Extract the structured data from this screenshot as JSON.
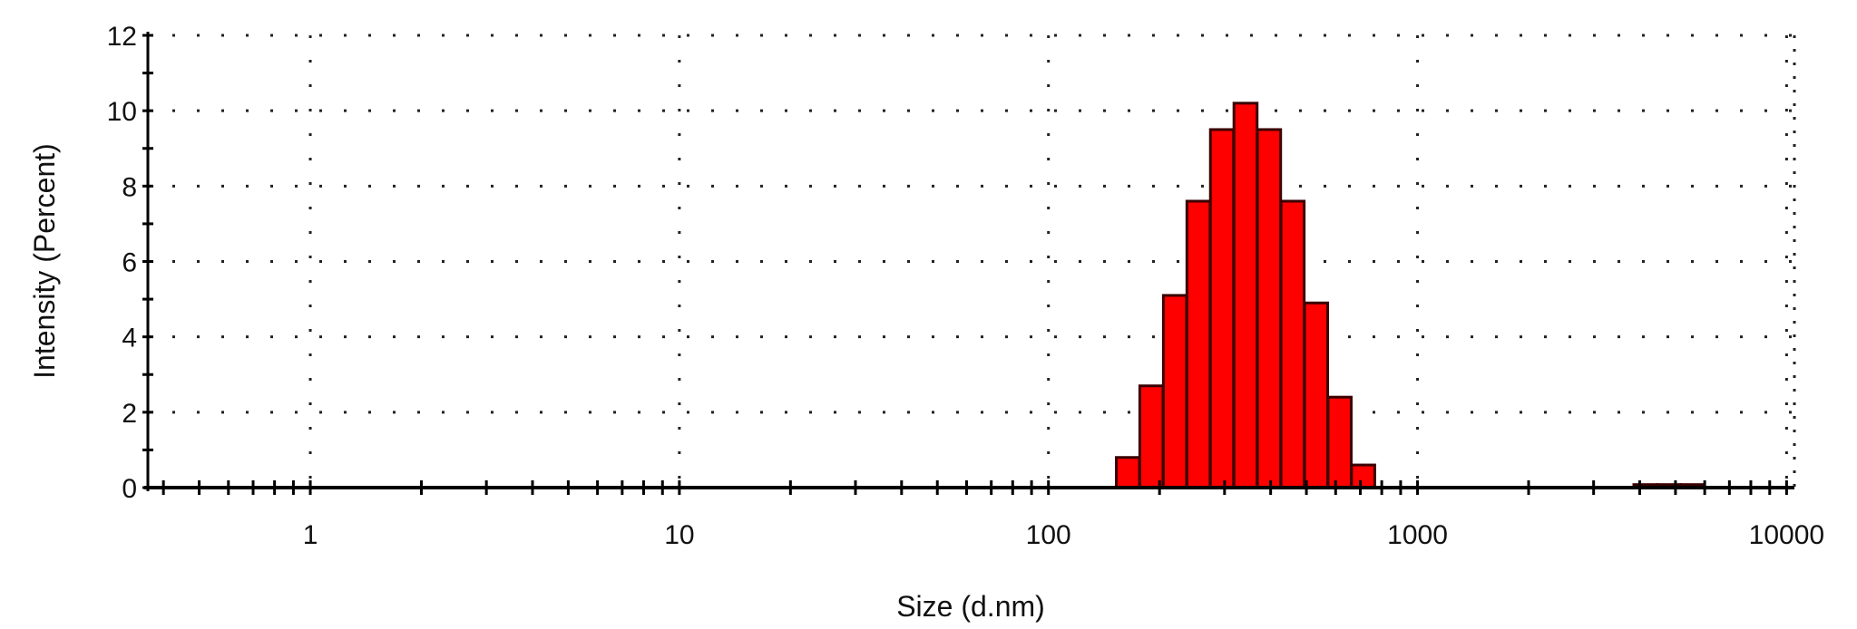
{
  "chart_data": {
    "type": "bar",
    "title": "",
    "xlabel": "Size (d.nm)",
    "ylabel": "Intensity (Percent)",
    "x_scale": "log",
    "xlim": [
      0.363,
      10500
    ],
    "ylim": [
      0,
      12
    ],
    "x_ticks": [
      1,
      10,
      100,
      1000,
      10000
    ],
    "x_tick_labels": [
      "1",
      "10",
      "100",
      "1000",
      "10000"
    ],
    "y_ticks": [
      0,
      2,
      4,
      6,
      8,
      10,
      12
    ],
    "y_tick_labels": [
      "0",
      "2",
      "4",
      "6",
      "8",
      "10",
      "12"
    ],
    "grid": true,
    "grid_style": "dotted",
    "bar_color": "#ff0000",
    "bar_edge_color": "#3a0000",
    "sizes": [
      3.122,
      3.615,
      4.187,
      4.849,
      164.2,
      190.1,
      220.2,
      255.0,
      295.3,
      342.0,
      396.1,
      458.7,
      531.2,
      615.1,
      712.4,
      4145,
      4801,
      5560
    ],
    "values": [
      0.01,
      0.01,
      0.01,
      0.01,
      0.8,
      2.7,
      5.1,
      7.6,
      9.5,
      10.2,
      9.5,
      7.6,
      4.9,
      2.4,
      0.6,
      0.08,
      0.08,
      0.08
    ]
  }
}
